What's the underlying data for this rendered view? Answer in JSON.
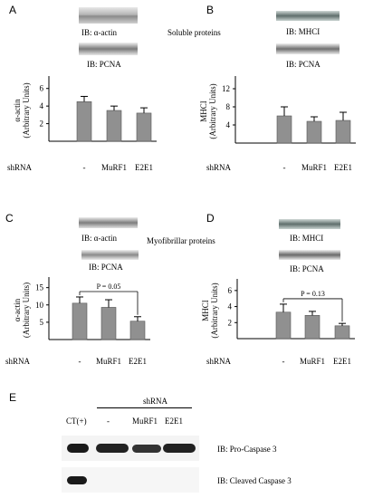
{
  "panels": {
    "A": {
      "letter": "A",
      "blot_top": "IB: α-actin",
      "blot_bottom": "IB: PCNA"
    },
    "B": {
      "letter": "B",
      "blot_top": "IB: MHCI",
      "blot_bottom": "IB: PCNA"
    },
    "C": {
      "letter": "C",
      "blot_top": "IB: α-actin",
      "blot_bottom": "IB: PCNA"
    },
    "D": {
      "letter": "D",
      "blot_top": "IB: MHCI",
      "blot_bottom": "IB: PCNA"
    },
    "E": {
      "letter": "E"
    }
  },
  "section_titles": {
    "soluble": "Soluble proteins",
    "myofibrillar": "Myofibrillar proteins"
  },
  "shrna_label": "shRNA",
  "chart_data": [
    {
      "id": "A",
      "type": "bar",
      "categories": [
        "-",
        "MuRF1",
        "E2E1"
      ],
      "values": [
        4.5,
        3.5,
        3.2
      ],
      "errors": [
        0.6,
        0.5,
        0.6
      ],
      "ylabel": [
        "α-actin",
        "(Arbitrary Units)"
      ],
      "ylim": [
        0,
        7
      ],
      "yticks": [
        2,
        4,
        6
      ],
      "annotation": null
    },
    {
      "id": "B",
      "type": "bar",
      "categories": [
        "-",
        "MuRF1",
        "E2E1"
      ],
      "values": [
        6.0,
        4.8,
        5.0
      ],
      "errors": [
        2.0,
        1.0,
        1.8
      ],
      "ylabel": [
        "MHCI",
        "(Arbitrary Units)"
      ],
      "ylim": [
        0,
        14
      ],
      "yticks": [
        4,
        8,
        12
      ],
      "annotation": null
    },
    {
      "id": "C",
      "type": "bar",
      "categories": [
        "-",
        "MuRF1",
        "E2E1"
      ],
      "values": [
        10.5,
        9.3,
        5.3
      ],
      "errors": [
        1.8,
        2.2,
        1.3
      ],
      "ylabel": [
        "α-actin",
        "(Arbitrary Units)"
      ],
      "ylim": [
        0,
        17
      ],
      "yticks": [
        5,
        10,
        15
      ],
      "annotation": {
        "text": "P = 0.05",
        "from": 0,
        "to": 2
      }
    },
    {
      "id": "D",
      "type": "bar",
      "categories": [
        "-",
        "MuRF1",
        "E2E1"
      ],
      "values": [
        3.3,
        2.9,
        1.6
      ],
      "errors": [
        1.0,
        0.5,
        0.3
      ],
      "ylabel": [
        "MHCI",
        "(Arbitrary Units)"
      ],
      "ylim": [
        0,
        7
      ],
      "yticks": [
        2,
        4,
        6
      ],
      "annotation": {
        "text": "P = 0.13",
        "from": 0,
        "to": 2
      }
    }
  ],
  "panel_E": {
    "shrna_header": "shRNA",
    "lanes": [
      "CT(+)",
      "-",
      "MuRF1",
      "E2E1"
    ],
    "blot1_label": "IB: Pro-Caspase 3",
    "blot2_label": "IB: Cleaved Caspase 3"
  }
}
